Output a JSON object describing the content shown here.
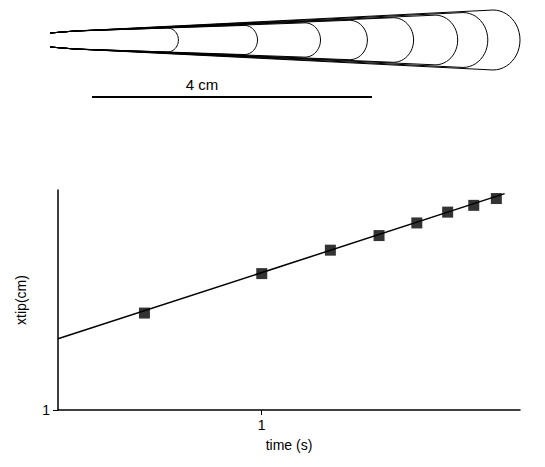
{
  "chart_data": {
    "type": "scatter",
    "log": true,
    "x_label": "time (s)",
    "y_label": "xtip(cm)",
    "xlim": [
      0.3,
      4.6
    ],
    "ylim": [
      1,
      8
    ],
    "xticks": [
      1
    ],
    "yticks": [
      1
    ],
    "grid": false,
    "series": [
      {
        "type": "scatter",
        "marker": "square",
        "color": "#000000",
        "x": [
          0.5,
          1,
          1.5,
          2,
          2.5,
          3,
          3.5,
          4
        ],
        "values": [
          2.5,
          3.63,
          4.53,
          5.2,
          5.86,
          6.49,
          6.92,
          7.38
        ]
      },
      {
        "type": "line",
        "line_style": "solid",
        "color": "#000000",
        "x": [
          0.3,
          4.2
        ],
        "values": [
          1.96,
          7.73
        ]
      }
    ],
    "scale_bar": {
      "value": 4,
      "label": "4 cm"
    }
  }
}
